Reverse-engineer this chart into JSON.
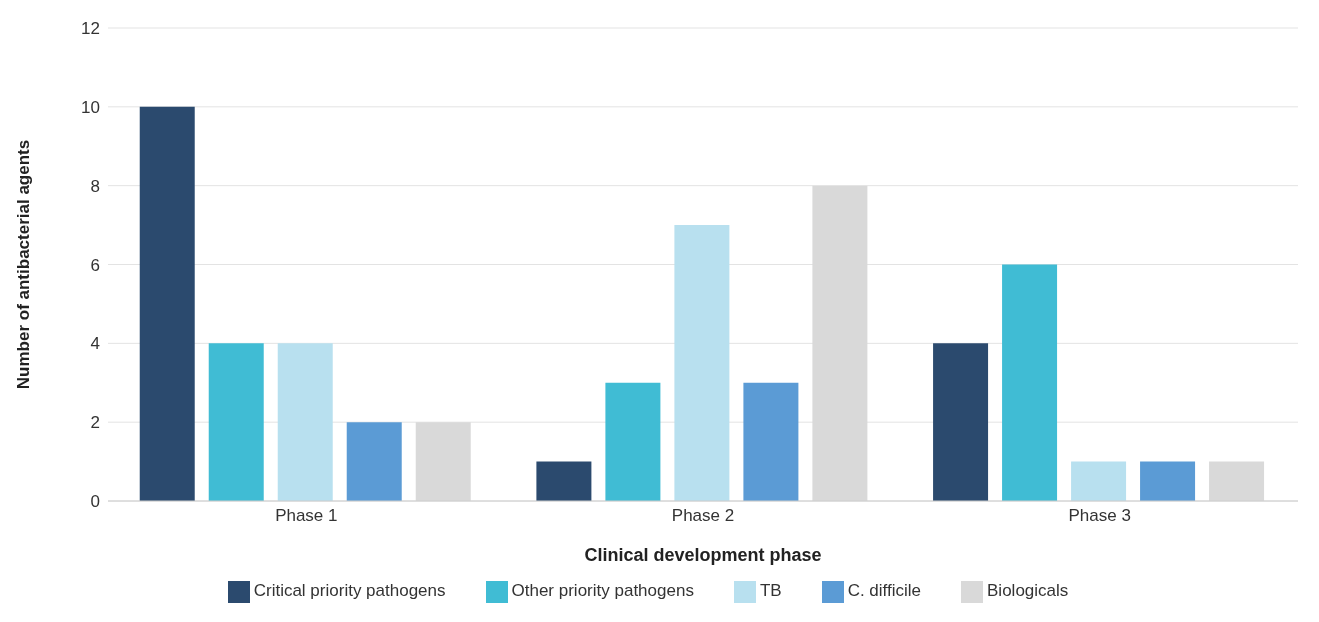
{
  "chart_data": {
    "type": "bar",
    "xlabel": "Clinical development phase",
    "ylabel": "Number of antibacterial agents",
    "categories": [
      "Phase 1",
      "Phase 2",
      "Phase 3"
    ],
    "series": [
      {
        "name": "Critical priority pathogens",
        "color": "#2b4a6e",
        "values": [
          10,
          1,
          4
        ]
      },
      {
        "name": "Other priority pathogens",
        "color": "#40bcd4",
        "values": [
          4,
          3,
          6
        ]
      },
      {
        "name": "TB",
        "color": "#b8e0ef",
        "values": [
          4,
          7,
          1
        ]
      },
      {
        "name": "C. difficile",
        "color": "#5b9bd5",
        "values": [
          2,
          3,
          1
        ]
      },
      {
        "name": "Biologicals",
        "color": "#d9d9d9",
        "values": [
          2,
          8,
          1
        ]
      }
    ],
    "ylim": [
      0,
      12
    ],
    "yticks": [
      0,
      2,
      4,
      6,
      8,
      10,
      12
    ],
    "grid": "y",
    "legend": "bottom"
  }
}
